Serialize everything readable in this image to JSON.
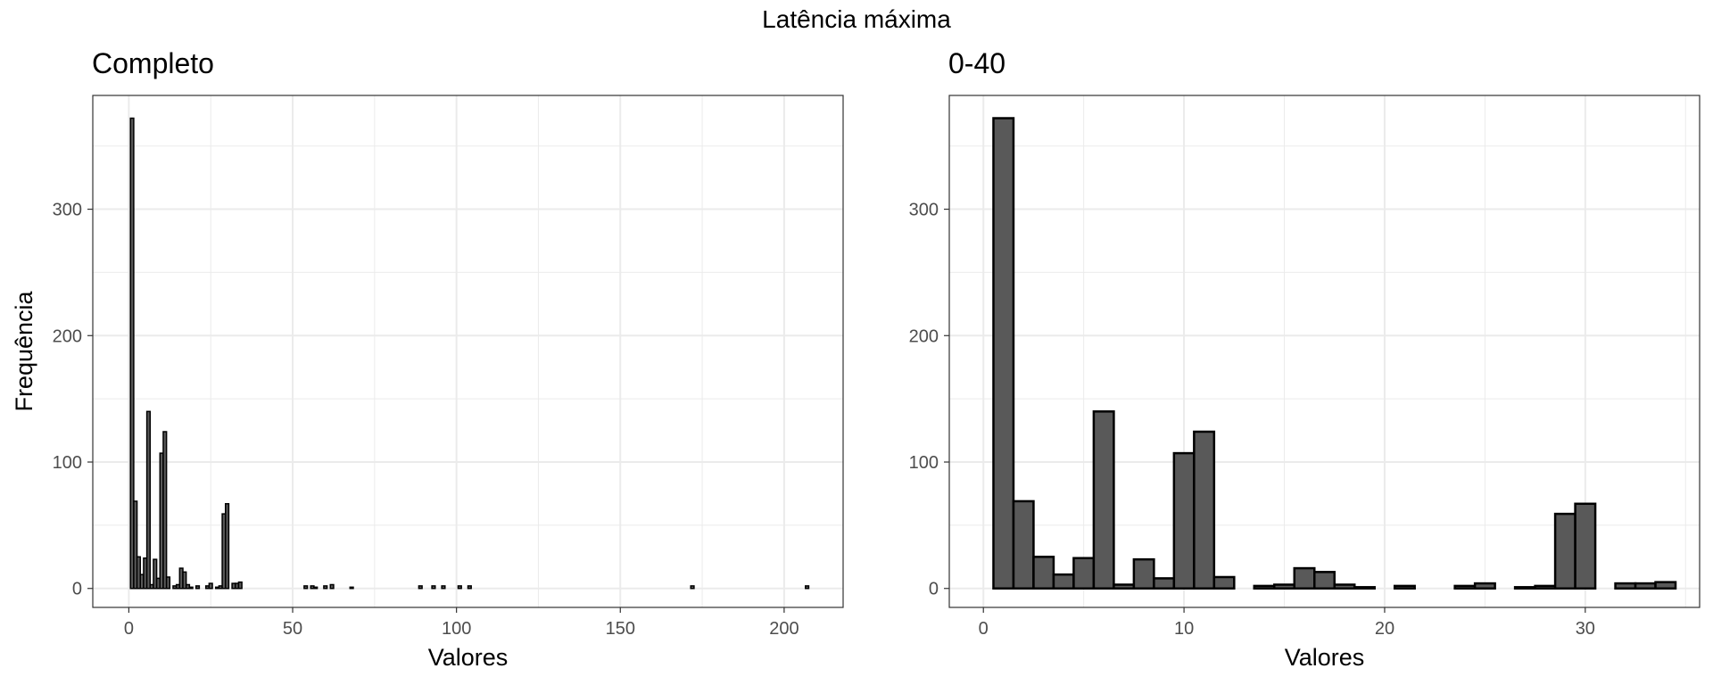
{
  "figure": {
    "title": "Latência máxima"
  },
  "chart_data": [
    {
      "type": "bar",
      "title": "Completo",
      "xlabel": "Valores",
      "ylabel": "Frequência",
      "xlim": [
        -11,
        218
      ],
      "ylim": [
        -15,
        390
      ],
      "xticks": [
        0,
        50,
        100,
        150,
        200
      ],
      "yticks": [
        0,
        100,
        200,
        300
      ],
      "bin_width": 1,
      "grid": true,
      "bar_color": "#595959",
      "outline_color": "#000000",
      "bins": [
        {
          "x": 1,
          "y": 372
        },
        {
          "x": 2,
          "y": 69
        },
        {
          "x": 3,
          "y": 25
        },
        {
          "x": 4,
          "y": 11
        },
        {
          "x": 5,
          "y": 24
        },
        {
          "x": 6,
          "y": 140
        },
        {
          "x": 7,
          "y": 3
        },
        {
          "x": 8,
          "y": 23
        },
        {
          "x": 9,
          "y": 8
        },
        {
          "x": 10,
          "y": 107
        },
        {
          "x": 11,
          "y": 124
        },
        {
          "x": 12,
          "y": 9
        },
        {
          "x": 14,
          "y": 2
        },
        {
          "x": 15,
          "y": 3
        },
        {
          "x": 16,
          "y": 16
        },
        {
          "x": 17,
          "y": 13
        },
        {
          "x": 18,
          "y": 3
        },
        {
          "x": 19,
          "y": 1
        },
        {
          "x": 21,
          "y": 2
        },
        {
          "x": 24,
          "y": 2
        },
        {
          "x": 25,
          "y": 4
        },
        {
          "x": 27,
          "y": 1
        },
        {
          "x": 28,
          "y": 2
        },
        {
          "x": 29,
          "y": 59
        },
        {
          "x": 30,
          "y": 67
        },
        {
          "x": 32,
          "y": 4
        },
        {
          "x": 33,
          "y": 4
        },
        {
          "x": 34,
          "y": 5
        },
        {
          "x": 54,
          "y": 2
        },
        {
          "x": 56,
          "y": 2
        },
        {
          "x": 57,
          "y": 1
        },
        {
          "x": 60,
          "y": 2
        },
        {
          "x": 62,
          "y": 3
        },
        {
          "x": 68,
          "y": 1
        },
        {
          "x": 89,
          "y": 2
        },
        {
          "x": 93,
          "y": 2
        },
        {
          "x": 96,
          "y": 2
        },
        {
          "x": 101,
          "y": 2
        },
        {
          "x": 104,
          "y": 2
        },
        {
          "x": 172,
          "y": 2
        },
        {
          "x": 207,
          "y": 2
        }
      ]
    },
    {
      "type": "bar",
      "title": "0-40",
      "xlabel": "Valores",
      "ylabel": "",
      "xlim": [
        -1.7,
        35.7
      ],
      "ylim": [
        -15,
        390
      ],
      "xticks": [
        0,
        10,
        20,
        30
      ],
      "yticks": [
        0,
        100,
        200,
        300
      ],
      "bin_width": 1,
      "grid": true,
      "bar_color": "#595959",
      "outline_color": "#000000",
      "bins": [
        {
          "x": 1,
          "y": 372
        },
        {
          "x": 2,
          "y": 69
        },
        {
          "x": 3,
          "y": 25
        },
        {
          "x": 4,
          "y": 11
        },
        {
          "x": 5,
          "y": 24
        },
        {
          "x": 6,
          "y": 140
        },
        {
          "x": 7,
          "y": 3
        },
        {
          "x": 8,
          "y": 23
        },
        {
          "x": 9,
          "y": 8
        },
        {
          "x": 10,
          "y": 107
        },
        {
          "x": 11,
          "y": 124
        },
        {
          "x": 12,
          "y": 9
        },
        {
          "x": 14,
          "y": 2
        },
        {
          "x": 15,
          "y": 3
        },
        {
          "x": 16,
          "y": 16
        },
        {
          "x": 17,
          "y": 13
        },
        {
          "x": 18,
          "y": 3
        },
        {
          "x": 19,
          "y": 1
        },
        {
          "x": 21,
          "y": 2
        },
        {
          "x": 24,
          "y": 2
        },
        {
          "x": 25,
          "y": 4
        },
        {
          "x": 27,
          "y": 1
        },
        {
          "x": 28,
          "y": 2
        },
        {
          "x": 29,
          "y": 59
        },
        {
          "x": 30,
          "y": 67
        },
        {
          "x": 32,
          "y": 4
        },
        {
          "x": 33,
          "y": 4
        },
        {
          "x": 34,
          "y": 5
        }
      ]
    }
  ]
}
